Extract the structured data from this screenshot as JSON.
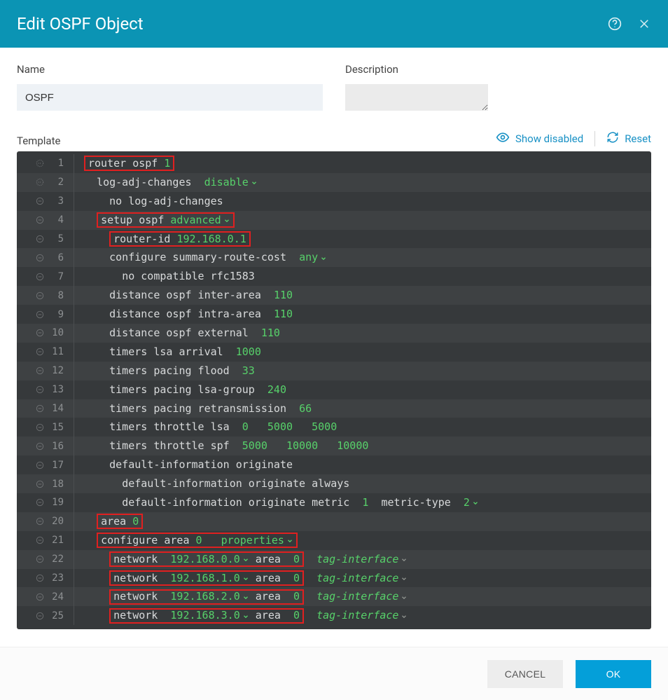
{
  "header": {
    "title": "Edit OSPF Object"
  },
  "fields": {
    "name_label": "Name",
    "name_value": "OSPF",
    "description_label": "Description",
    "description_value": ""
  },
  "templateBar": {
    "label": "Template",
    "showDisabled": "Show disabled",
    "reset": "Reset"
  },
  "colors": {
    "header_bg": "#0b94b4",
    "editor_bg": "#36393b",
    "editor_alt_bg": "#3e4143",
    "val": "#57d16a",
    "highlight_border": "#e02020",
    "link": "#1991c5"
  },
  "footer": {
    "cancel": "CANCEL",
    "ok": "OK"
  },
  "lines": [
    {
      "n": 1,
      "icon": "dash",
      "indent": 0,
      "boxed": true,
      "segs": [
        {
          "t": "router ospf ",
          "c": ""
        },
        {
          "t": "1",
          "c": "val"
        }
      ]
    },
    {
      "n": 2,
      "icon": "dash",
      "indent": 1,
      "segs": [
        {
          "t": "log-adj-changes  ",
          "c": ""
        },
        {
          "t": "disable",
          "c": "val",
          "dd": true
        }
      ]
    },
    {
      "n": 3,
      "icon": "minus",
      "indent": 2,
      "segs": [
        {
          "t": "no log-adj-changes",
          "c": ""
        }
      ]
    },
    {
      "n": 4,
      "icon": "minus",
      "indent": 1,
      "boxed": true,
      "segs": [
        {
          "t": "setup ospf ",
          "c": ""
        },
        {
          "t": "advanced",
          "c": "val",
          "dd": true
        }
      ]
    },
    {
      "n": 5,
      "icon": "minus",
      "indent": 2,
      "boxed": true,
      "segs": [
        {
          "t": "router-id ",
          "c": ""
        },
        {
          "t": "192.168.0.1",
          "c": "val"
        }
      ]
    },
    {
      "n": 6,
      "icon": "minus",
      "indent": 2,
      "segs": [
        {
          "t": "configure summary-route-cost  ",
          "c": ""
        },
        {
          "t": "any",
          "c": "val",
          "dd": true
        }
      ]
    },
    {
      "n": 7,
      "icon": "minus",
      "indent": 3,
      "segs": [
        {
          "t": "no compatible rfc1583",
          "c": ""
        }
      ]
    },
    {
      "n": 8,
      "icon": "minus",
      "indent": 2,
      "segs": [
        {
          "t": "distance ospf inter-area  ",
          "c": ""
        },
        {
          "t": "110",
          "c": "val"
        }
      ]
    },
    {
      "n": 9,
      "icon": "minus",
      "indent": 2,
      "segs": [
        {
          "t": "distance ospf intra-area  ",
          "c": ""
        },
        {
          "t": "110",
          "c": "val"
        }
      ]
    },
    {
      "n": 10,
      "icon": "minus",
      "indent": 2,
      "segs": [
        {
          "t": "distance ospf external  ",
          "c": ""
        },
        {
          "t": "110",
          "c": "val"
        }
      ]
    },
    {
      "n": 11,
      "icon": "minus",
      "indent": 2,
      "segs": [
        {
          "t": "timers lsa arrival  ",
          "c": ""
        },
        {
          "t": "1000",
          "c": "val"
        }
      ]
    },
    {
      "n": 12,
      "icon": "minus",
      "indent": 2,
      "segs": [
        {
          "t": "timers pacing flood  ",
          "c": ""
        },
        {
          "t": "33",
          "c": "val"
        }
      ]
    },
    {
      "n": 13,
      "icon": "minus",
      "indent": 2,
      "segs": [
        {
          "t": "timers pacing lsa-group  ",
          "c": ""
        },
        {
          "t": "240",
          "c": "val"
        }
      ]
    },
    {
      "n": 14,
      "icon": "minus",
      "indent": 2,
      "segs": [
        {
          "t": "timers pacing retransmission  ",
          "c": ""
        },
        {
          "t": "66",
          "c": "val"
        }
      ]
    },
    {
      "n": 15,
      "icon": "minus",
      "indent": 2,
      "segs": [
        {
          "t": "timers throttle lsa  ",
          "c": ""
        },
        {
          "t": "0",
          "c": "val"
        },
        {
          "t": "   ",
          "c": ""
        },
        {
          "t": "5000",
          "c": "val"
        },
        {
          "t": "   ",
          "c": ""
        },
        {
          "t": "5000",
          "c": "val"
        }
      ]
    },
    {
      "n": 16,
      "icon": "minus",
      "indent": 2,
      "segs": [
        {
          "t": "timers throttle spf  ",
          "c": ""
        },
        {
          "t": "5000",
          "c": "val"
        },
        {
          "t": "   ",
          "c": ""
        },
        {
          "t": "10000",
          "c": "val"
        },
        {
          "t": "   ",
          "c": ""
        },
        {
          "t": "10000",
          "c": "val"
        }
      ]
    },
    {
      "n": 17,
      "icon": "minus",
      "indent": 2,
      "segs": [
        {
          "t": "default-information originate",
          "c": ""
        }
      ]
    },
    {
      "n": 18,
      "icon": "minus",
      "indent": 3,
      "segs": [
        {
          "t": "default-information originate always",
          "c": ""
        }
      ]
    },
    {
      "n": 19,
      "icon": "minus",
      "indent": 3,
      "segs": [
        {
          "t": "default-information originate metric  ",
          "c": ""
        },
        {
          "t": "1",
          "c": "val"
        },
        {
          "t": "  metric-type  ",
          "c": ""
        },
        {
          "t": "2",
          "c": "val",
          "dd": true
        }
      ]
    },
    {
      "n": 20,
      "icon": "minus",
      "indent": 1,
      "boxed": true,
      "segs": [
        {
          "t": "area ",
          "c": ""
        },
        {
          "t": "0",
          "c": "val"
        }
      ]
    },
    {
      "n": 21,
      "icon": "minus",
      "indent": 1,
      "boxed": true,
      "segs": [
        {
          "t": "configure area ",
          "c": ""
        },
        {
          "t": "0",
          "c": "val"
        },
        {
          "t": "   ",
          "c": ""
        },
        {
          "t": "properties",
          "c": "val",
          "dd": true
        }
      ]
    },
    {
      "n": 22,
      "icon": "minus",
      "indent": 2,
      "boxed": true,
      "segs": [
        {
          "t": "network  ",
          "c": ""
        },
        {
          "t": "192.168.0.0",
          "c": "val",
          "dd": true
        },
        {
          "t": " area  ",
          "c": ""
        },
        {
          "t": "0",
          "c": "val"
        }
      ],
      "tail": "tag-interface"
    },
    {
      "n": 23,
      "icon": "minus",
      "indent": 2,
      "boxed": true,
      "segs": [
        {
          "t": "network  ",
          "c": ""
        },
        {
          "t": "192.168.1.0",
          "c": "val",
          "dd": true
        },
        {
          "t": " area  ",
          "c": ""
        },
        {
          "t": "0",
          "c": "val"
        }
      ],
      "tail": "tag-interface"
    },
    {
      "n": 24,
      "icon": "minus",
      "indent": 2,
      "boxed": true,
      "segs": [
        {
          "t": "network  ",
          "c": ""
        },
        {
          "t": "192.168.2.0",
          "c": "val",
          "dd": true
        },
        {
          "t": " area  ",
          "c": ""
        },
        {
          "t": "0",
          "c": "val"
        }
      ],
      "tail": "tag-interface"
    },
    {
      "n": 25,
      "icon": "minus",
      "indent": 2,
      "boxed": true,
      "segs": [
        {
          "t": "network  ",
          "c": ""
        },
        {
          "t": "192.168.3.0",
          "c": "val",
          "dd": true
        },
        {
          "t": " area  ",
          "c": ""
        },
        {
          "t": "0",
          "c": "val"
        }
      ],
      "tail": "tag-interface"
    }
  ]
}
